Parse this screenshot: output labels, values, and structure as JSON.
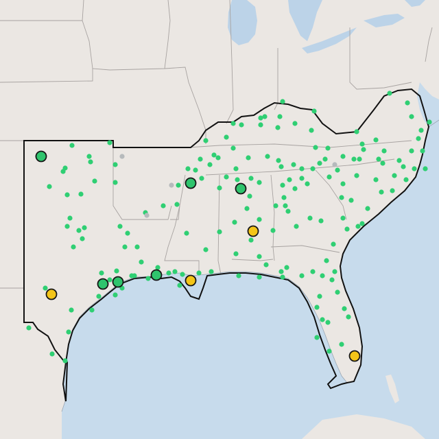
{
  "map": {
    "colors": {
      "land": "#ebe7e3",
      "water": "#c7dbec",
      "lake": "#bcd3e8",
      "state_border": "#a7a2a0",
      "coast": "#9aa6b2",
      "region_outline": "#111111",
      "site_green": "#2fcf73",
      "site_gray": "#b6babc",
      "marker_green": "#2fc46d",
      "marker_yellow": "#f4c518",
      "marker_stroke": "#161616"
    },
    "large_markers": [
      {
        "category": "green"
      },
      {
        "category": "green"
      },
      {
        "category": "green"
      },
      {
        "category": "green"
      },
      {
        "category": "green"
      },
      {
        "category": "green"
      },
      {
        "category": "yellow"
      },
      {
        "category": "yellow"
      },
      {
        "category": "yellow"
      },
      {
        "category": "yellow"
      }
    ]
  }
}
